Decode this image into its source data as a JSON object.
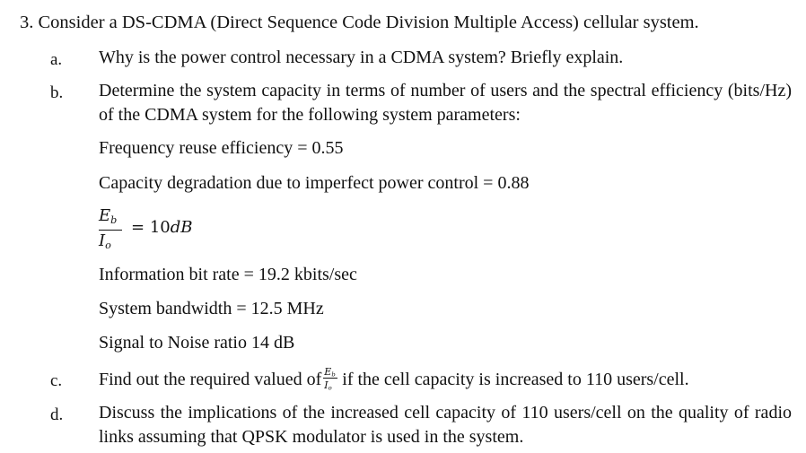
{
  "question": {
    "number": "3.",
    "title": "Consider a DS-CDMA (Direct Sequence Code Division Multiple Access) cellular system."
  },
  "part_a": {
    "marker": "a.",
    "text": "Why is the power control necessary in a CDMA system? Briefly explain."
  },
  "part_b": {
    "marker": "b.",
    "text": "Determine the system capacity in terms of number of users and the spectral efficiency (bits/Hz) of the CDMA system for the following system parameters:",
    "parameters": {
      "frequency_reuse": "Frequency reuse efficiency = 0.55",
      "capacity_degradation": "Capacity degradation due to imperfect power control = 0.88",
      "eb_io": {
        "numerator": "E",
        "numerator_sub": "b",
        "denominator": "I",
        "denominator_sub": "o",
        "equals": "=",
        "value": "10",
        "unit": "dB"
      },
      "info_bit_rate": "Information bit rate = 19.2 kbits/sec",
      "bandwidth": "System bandwidth = 12.5 MHz",
      "snr": "Signal to Noise ratio 14 dB"
    }
  },
  "part_c": {
    "marker": "c.",
    "text_before": "Find out the required valued of",
    "text_after": "if the cell capacity is increased to 110 users/cell.",
    "frac": {
      "numerator": "E",
      "numerator_sub": "b",
      "denominator": "I",
      "denominator_sub": "o"
    }
  },
  "part_d": {
    "marker": "d.",
    "text": "Discuss the implications of the increased cell capacity of 110 users/cell on the quality of radio links assuming that QPSK modulator is used in the system."
  }
}
